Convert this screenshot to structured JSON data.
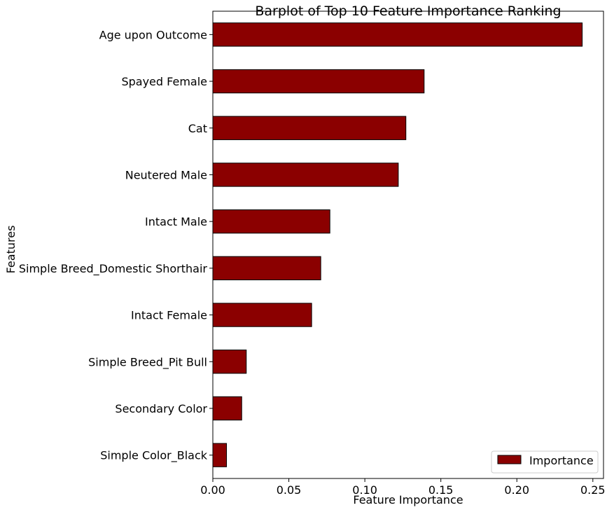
{
  "chart_data": {
    "type": "bar",
    "orientation": "horizontal",
    "title": "Barplot of Top 10 Feature Importance Ranking",
    "xlabel": "Feature Importance",
    "ylabel": "Features",
    "categories": [
      "Age upon Outcome",
      "Spayed Female",
      "Cat",
      "Neutered Male",
      "Intact Male",
      "Simple Breed_Domestic Shorthair",
      "Intact Female",
      "Simple Breed_Pit Bull",
      "Secondary Color",
      "Simple Color_Black"
    ],
    "series": [
      {
        "name": "Importance",
        "values": [
          0.243,
          0.139,
          0.127,
          0.122,
          0.077,
          0.071,
          0.065,
          0.022,
          0.019,
          0.009
        ],
        "color": "#8b0000"
      }
    ],
    "xlim": [
      0,
      0.257
    ],
    "xticks": [
      0.0,
      0.05,
      0.1,
      0.15,
      0.2,
      0.25
    ],
    "xtick_labels": [
      "0.00",
      "0.05",
      "0.10",
      "0.15",
      "0.20",
      "0.25"
    ],
    "grid": false,
    "legend_position": "lower-right"
  }
}
